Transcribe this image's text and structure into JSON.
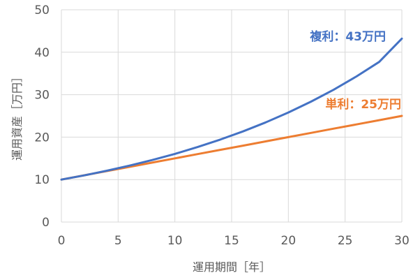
{
  "chart_data": {
    "type": "line",
    "xlabel": "運用期間［年］",
    "ylabel": "運用資産［万円］",
    "xlim": [
      0,
      30
    ],
    "ylim": [
      0,
      50
    ],
    "x_ticks": [
      "0",
      "5",
      "10",
      "15",
      "20",
      "25",
      "30"
    ],
    "y_ticks": [
      "0",
      "10",
      "20",
      "30",
      "40",
      "50"
    ],
    "grid": true,
    "legend": "none",
    "x": [
      0,
      2,
      4,
      6,
      8,
      10,
      12,
      14,
      16,
      18,
      20,
      22,
      24,
      26,
      28,
      30
    ],
    "series": [
      {
        "key": "compound",
        "color": "#4472C4",
        "label": "複利：43万円",
        "values": [
          10,
          10.99,
          12.09,
          13.29,
          14.61,
          16.06,
          17.66,
          19.42,
          21.35,
          23.47,
          25.81,
          28.37,
          31.19,
          34.3,
          37.71,
          43.2
        ]
      },
      {
        "key": "simple",
        "color": "#ED7D31",
        "label": "単利：25万円",
        "values": [
          10,
          11,
          12,
          13,
          14,
          15,
          16,
          17,
          18,
          19,
          20,
          21,
          22,
          23,
          24,
          25
        ]
      }
    ]
  }
}
